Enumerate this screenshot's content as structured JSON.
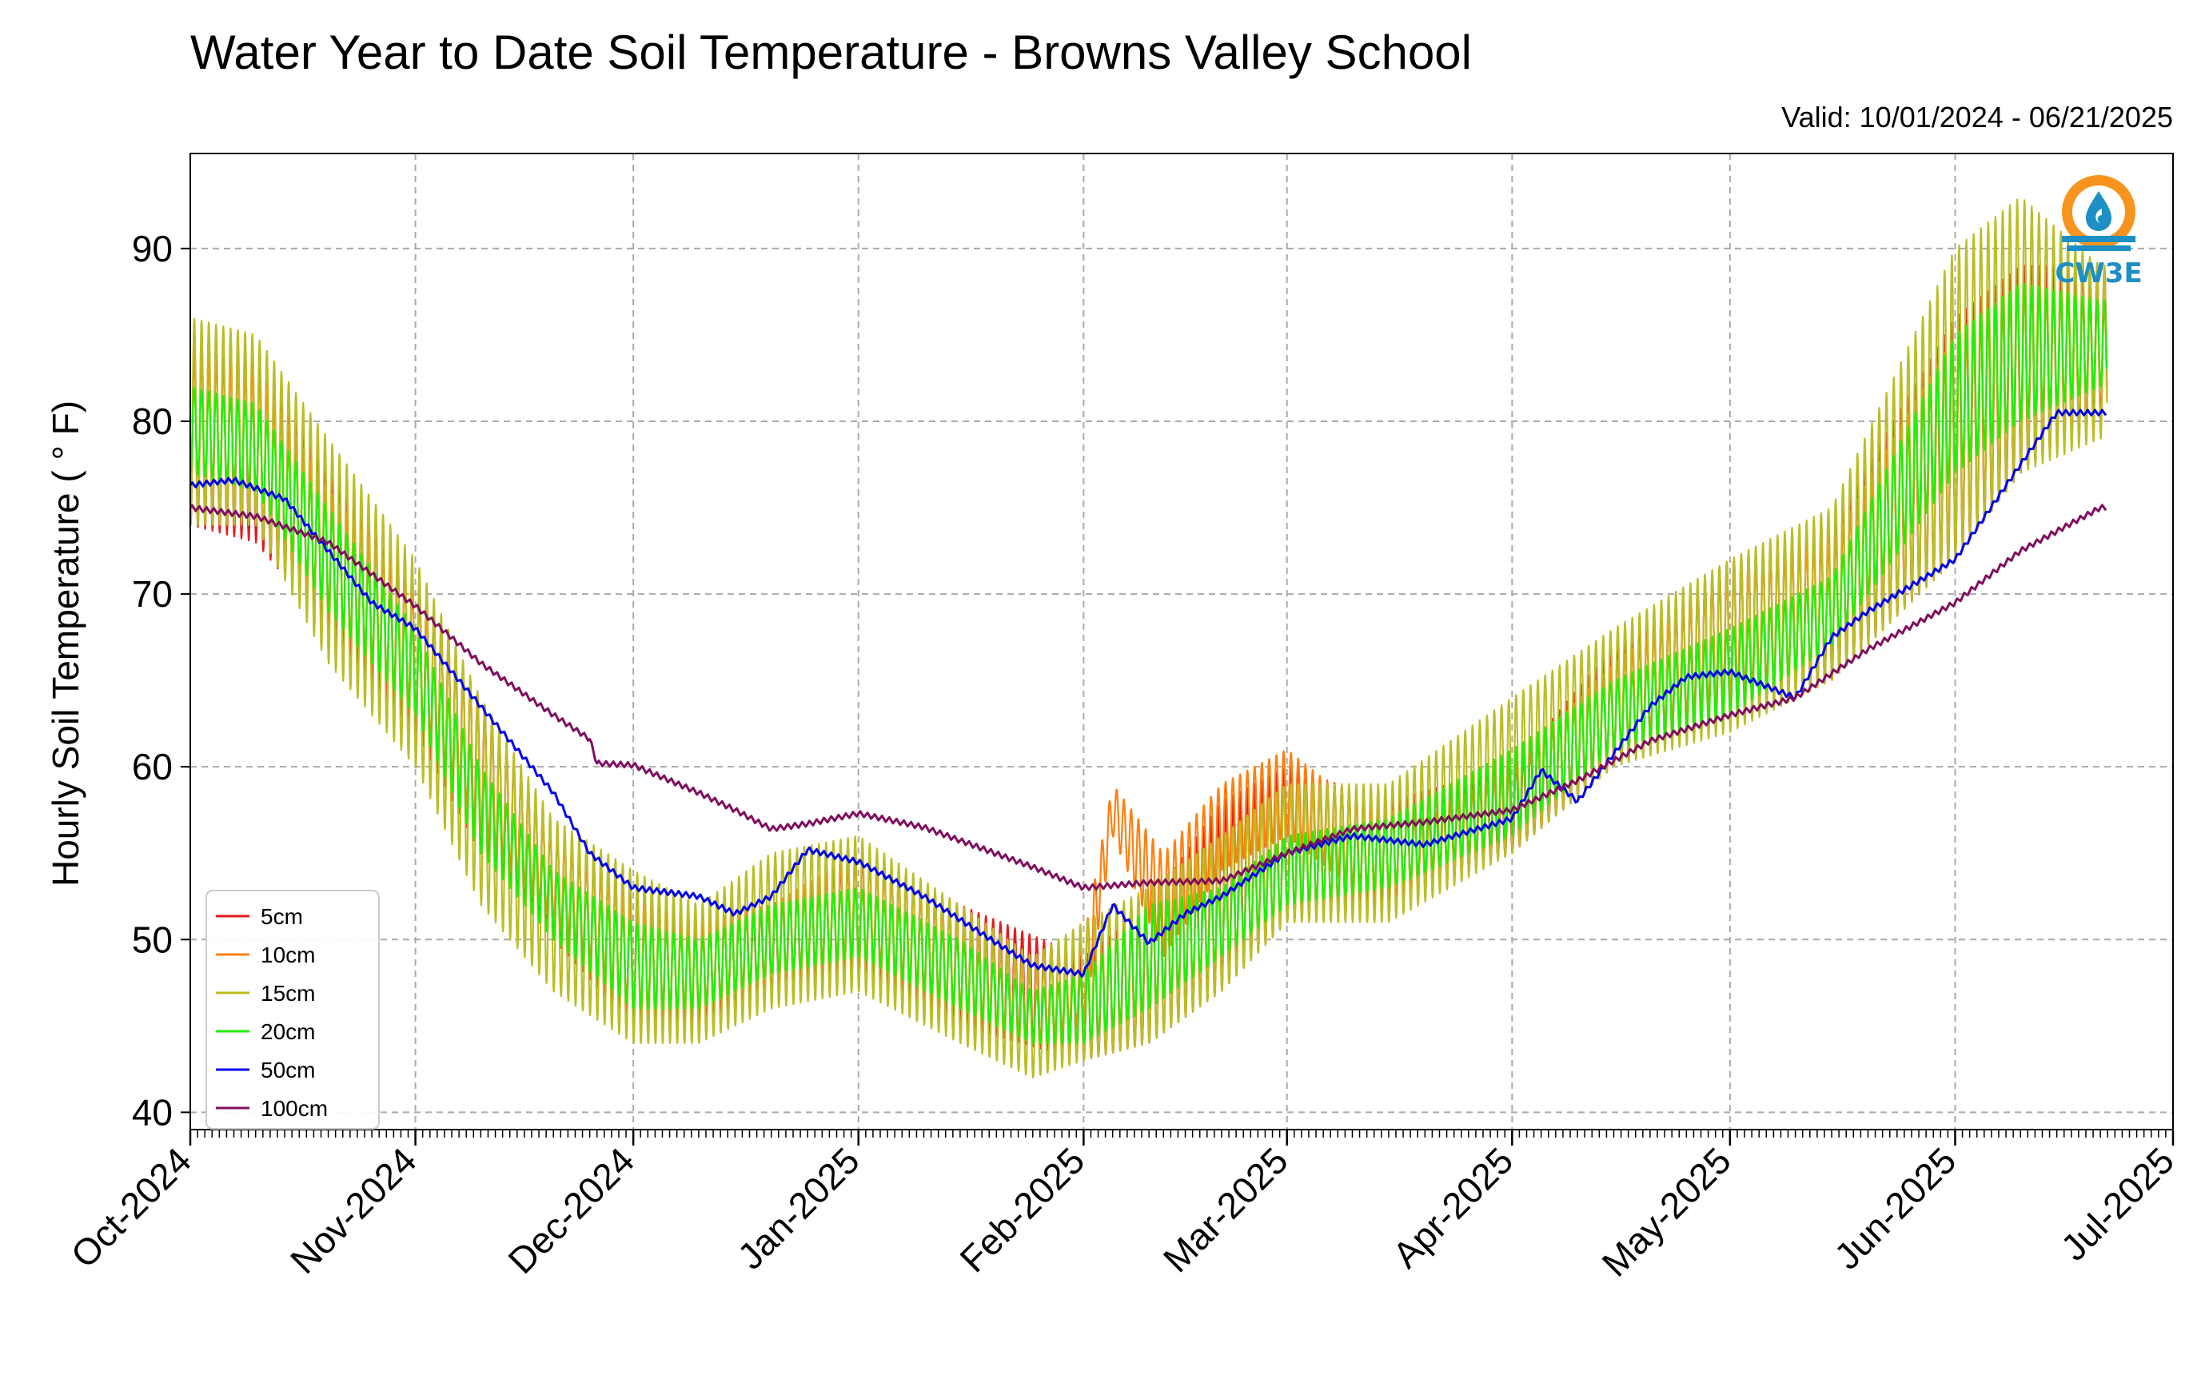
{
  "title": "Water Year to Date Soil Temperature - Browns Valley School",
  "valid_text": "Valid: 10/01/2024 - 06/21/2025",
  "logo": {
    "text": "CW3E",
    "icon": "water-drop-logo-icon",
    "colors": {
      "ring": "#f7941d",
      "waves": "#1d8fc4"
    }
  },
  "chart_data": {
    "type": "line",
    "title": "Water Year to Date Soil Temperature - Browns Valley School",
    "ylabel": "Hourly Soil Temperature ( ° F)",
    "xlabel": "",
    "ylim": [
      39,
      95.5
    ],
    "xlim": [
      "2024-10-01",
      "2025-07-01"
    ],
    "y_ticks": [
      40,
      50,
      60,
      70,
      80,
      90
    ],
    "x_tick_labels": [
      "Oct-2024",
      "Nov-2024",
      "Dec-2024",
      "Jan-2025",
      "Feb-2025",
      "Mar-2025",
      "Apr-2025",
      "May-2025",
      "Jun-2025",
      "Jul-2025"
    ],
    "x_tick_dates": [
      "2024-10-01",
      "2024-11-01",
      "2024-12-01",
      "2025-01-01",
      "2025-02-01",
      "2025-03-01",
      "2025-04-01",
      "2025-05-01",
      "2025-06-01",
      "2025-07-01"
    ],
    "grid": true,
    "legend_position": "lower-left",
    "series_are_daily_envelopes": true,
    "series": [
      {
        "name": "5cm",
        "color": "#e31a1c",
        "x": [
          "2024-10-01",
          "2024-10-10",
          "2024-10-20",
          "2024-11-01",
          "2024-11-10",
          "2024-11-20",
          "2024-12-01",
          "2024-12-10",
          "2024-12-20",
          "2025-01-01",
          "2025-01-15",
          "2025-02-01",
          "2025-02-10",
          "2025-02-20",
          "2025-03-01",
          "2025-03-15",
          "2025-04-01",
          "2025-04-15",
          "2025-05-01",
          "2025-05-15",
          "2025-06-01",
          "2025-06-10",
          "2025-06-21"
        ],
        "min": [
          74,
          73,
          68,
          62,
          55,
          50,
          45,
          45,
          47,
          48,
          45,
          43,
          44,
          47,
          51,
          52,
          55,
          60,
          63,
          65,
          72,
          77,
          80
        ],
        "max": [
          85,
          84,
          77,
          71,
          64,
          56,
          53,
          51,
          52,
          55,
          52,
          49,
          52,
          58,
          60,
          58,
          60,
          67,
          72,
          74,
          86,
          89,
          89
        ]
      },
      {
        "name": "10cm",
        "color": "#ff7f0e",
        "x": [
          "2024-10-01",
          "2024-10-10",
          "2024-10-20",
          "2024-11-01",
          "2024-11-10",
          "2024-11-20",
          "2024-12-01",
          "2024-12-10",
          "2024-12-20",
          "2025-01-01",
          "2025-01-15",
          "2025-01-25",
          "2025-02-01",
          "2025-02-05",
          "2025-02-12",
          "2025-02-20",
          "2025-03-01",
          "2025-03-10",
          "2025-03-20",
          "2025-04-01",
          "2025-04-15",
          "2025-05-01",
          "2025-05-15",
          "2025-06-01",
          "2025-06-10",
          "2025-06-21"
        ],
        "min": [
          75,
          74,
          69,
          63,
          56,
          51,
          46,
          46,
          48,
          49,
          46,
          44,
          45,
          56,
          49,
          54,
          56,
          53,
          53,
          56,
          61,
          64,
          66,
          73,
          78,
          80
        ],
        "max": [
          84,
          83,
          76,
          70,
          63,
          56,
          52,
          51,
          52,
          55,
          51,
          48,
          50,
          59,
          55,
          59,
          61,
          58,
          57,
          60,
          66,
          71,
          73,
          85,
          88,
          87
        ]
      },
      {
        "name": "15cm",
        "color": "#bcbd22",
        "x": [
          "2024-10-01",
          "2024-10-10",
          "2024-10-20",
          "2024-11-01",
          "2024-11-10",
          "2024-11-20",
          "2024-12-01",
          "2024-12-10",
          "2024-12-20",
          "2025-01-01",
          "2025-01-15",
          "2025-01-25",
          "2025-02-01",
          "2025-02-10",
          "2025-02-20",
          "2025-03-01",
          "2025-03-15",
          "2025-04-01",
          "2025-04-15",
          "2025-05-01",
          "2025-05-15",
          "2025-06-01",
          "2025-06-10",
          "2025-06-21"
        ],
        "min": [
          74,
          74,
          66,
          60,
          52,
          47,
          44,
          44,
          46,
          47,
          44,
          42,
          43,
          44,
          47,
          51,
          51,
          55,
          60,
          62,
          65,
          72,
          77,
          79
        ],
        "max": [
          86,
          85,
          79,
          72,
          64,
          57,
          54,
          52,
          55,
          56,
          52,
          49,
          51,
          53,
          56,
          59,
          59,
          64,
          68,
          72,
          75,
          90,
          93,
          89
        ]
      },
      {
        "name": "20cm",
        "color": "#22ee00",
        "x": [
          "2024-10-01",
          "2024-10-10",
          "2024-10-20",
          "2024-11-01",
          "2024-11-10",
          "2024-11-20",
          "2024-12-01",
          "2024-12-10",
          "2024-12-20",
          "2025-01-01",
          "2025-01-15",
          "2025-01-25",
          "2025-02-01",
          "2025-02-10",
          "2025-02-20",
          "2025-03-01",
          "2025-03-15",
          "2025-04-01",
          "2025-04-15",
          "2025-05-01",
          "2025-05-15",
          "2025-06-01",
          "2025-06-10",
          "2025-06-21"
        ],
        "min": [
          77,
          76,
          69,
          63,
          55,
          50,
          46,
          46,
          48,
          49,
          46,
          44,
          44,
          46,
          49,
          52,
          53,
          56,
          61,
          63,
          67,
          77,
          80,
          82
        ],
        "max": [
          82,
          81,
          75,
          68,
          60,
          54,
          51,
          50,
          52,
          53,
          50,
          47,
          48,
          52,
          53,
          56,
          57,
          61,
          65,
          68,
          71,
          85,
          88,
          87
        ]
      },
      {
        "name": "50cm",
        "color": "#0000ee",
        "x": [
          "2024-10-01",
          "2024-10-07",
          "2024-10-14",
          "2024-10-20",
          "2024-10-26",
          "2024-11-01",
          "2024-11-10",
          "2024-11-20",
          "2024-11-25",
          "2024-12-01",
          "2024-12-10",
          "2024-12-15",
          "2024-12-20",
          "2024-12-25",
          "2025-01-01",
          "2025-01-10",
          "2025-01-20",
          "2025-01-25",
          "2025-02-01",
          "2025-02-05",
          "2025-02-10",
          "2025-02-15",
          "2025-02-20",
          "2025-03-01",
          "2025-03-10",
          "2025-03-20",
          "2025-04-01",
          "2025-04-05",
          "2025-04-10",
          "2025-04-20",
          "2025-04-25",
          "2025-05-01",
          "2025-05-10",
          "2025-05-15",
          "2025-05-20",
          "2025-06-01",
          "2025-06-10",
          "2025-06-15",
          "2025-06-21"
        ],
        "y": [
          76.3,
          76.6,
          75.5,
          72.5,
          69.5,
          68.0,
          63.5,
          58.5,
          55.0,
          53.0,
          52.5,
          51.5,
          52.5,
          55.2,
          54.5,
          52.5,
          49.8,
          48.5,
          48.0,
          52.0,
          49.8,
          51.5,
          52.5,
          55.0,
          56.0,
          55.5,
          57.0,
          59.8,
          58.0,
          63.5,
          65.2,
          65.5,
          64.0,
          67.5,
          69.0,
          72.0,
          77.5,
          80.5,
          80.5
        ]
      },
      {
        "name": "100cm",
        "color": "#7f0f5e",
        "x": [
          "2024-10-01",
          "2024-10-10",
          "2024-10-20",
          "2024-11-01",
          "2024-11-10",
          "2024-11-20",
          "2024-11-25",
          "2024-11-26",
          "2024-12-01",
          "2024-12-10",
          "2024-12-15",
          "2024-12-20",
          "2024-12-25",
          "2025-01-01",
          "2025-01-10",
          "2025-01-25",
          "2025-02-01",
          "2025-02-10",
          "2025-02-20",
          "2025-03-01",
          "2025-03-10",
          "2025-03-20",
          "2025-04-01",
          "2025-04-10",
          "2025-04-20",
          "2025-05-01",
          "2025-05-10",
          "2025-05-20",
          "2025-06-01",
          "2025-06-10",
          "2025-06-21"
        ],
        "y": [
          75.0,
          74.5,
          73.0,
          69.3,
          66.0,
          63.0,
          61.6,
          60.2,
          60.1,
          58.5,
          57.5,
          56.4,
          56.7,
          57.3,
          56.5,
          54.2,
          53.0,
          53.3,
          53.4,
          55.0,
          56.4,
          56.8,
          57.5,
          59.2,
          61.5,
          63.0,
          64.0,
          66.8,
          69.5,
          72.5,
          75.0
        ]
      }
    ]
  }
}
